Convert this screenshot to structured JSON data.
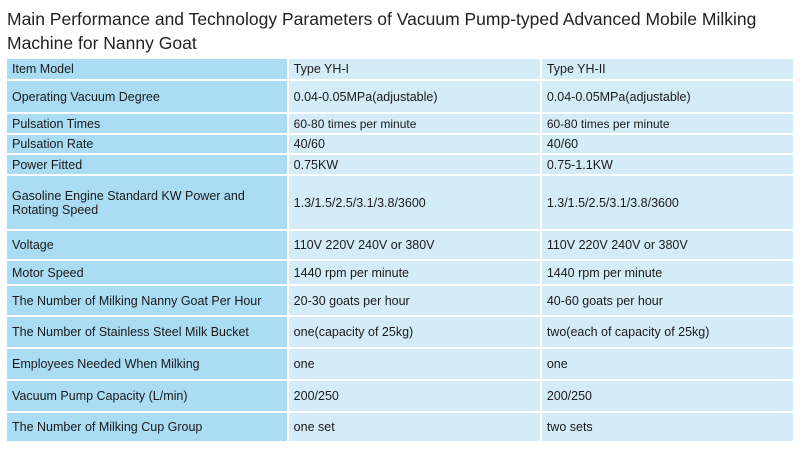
{
  "title": "Main Performance and Technology Parameters of Vacuum Pump-typed Advanced Mobile Milking Machine for Nanny Goat",
  "colors": {
    "label_column": "#aadcf4",
    "value_column": "#d4ecf8"
  },
  "table": {
    "rows": [
      [
        "Item Model",
        "Type YH-I",
        "Type YH-II"
      ],
      [
        "Operating Vacuum Degree",
        "0.04-0.05MPa(adjustable)",
        "0.04-0.05MPa(adjustable)"
      ],
      [
        "Pulsation Times",
        "60-80 times per minute",
        "60-80 times per minute"
      ],
      [
        "Pulsation Rate",
        "40/60",
        "40/60"
      ],
      [
        "Power Fitted",
        "0.75KW",
        "0.75-1.1KW"
      ],
      [
        "Gasoline Engine Standard KW Power and Rotating Speed",
        "1.3/1.5/2.5/3.1/3.8/3600",
        "1.3/1.5/2.5/3.1/3.8/3600"
      ],
      [
        "Voltage",
        "110V 220V 240V or 380V",
        "110V 220V 240V or 380V"
      ],
      [
        "Motor Speed",
        "1440 rpm per minute",
        "1440 rpm per minute"
      ],
      [
        "The Number of Milking Nanny Goat Per Hour",
        "20-30 goats per hour",
        "40-60 goats per hour"
      ],
      [
        "The Number of Stainless Steel Milk Bucket",
        "one(capacity of 25kg)",
        "two(each of capacity of 25kg)"
      ],
      [
        "Employees Needed When Milking",
        "one",
        "one"
      ],
      [
        "Vacuum Pump Capacity (L/min)",
        "200/250",
        "200/250"
      ],
      [
        "The Number of Milking Cup Group",
        "one set",
        "two sets"
      ]
    ]
  }
}
